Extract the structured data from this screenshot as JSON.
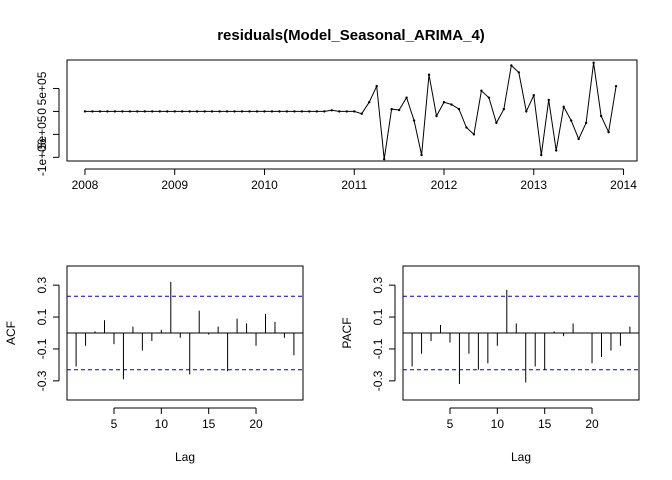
{
  "chart_data": [
    {
      "type": "line",
      "title": "residuals(Model_Seasonal_ARIMA_4)",
      "xlabel": "",
      "ylabel": "",
      "x_ticks": [
        "2008",
        "2009",
        "2010",
        "2011",
        "2012",
        "2013",
        "2014"
      ],
      "y_ticks": [
        "-1e+06",
        "-5e+05",
        "0",
        "5e+05"
      ],
      "xlim": [
        2008,
        2014
      ],
      "ylim": [
        -1000000,
        500000
      ],
      "series": [
        {
          "start": 2008.0,
          "frequency": 12,
          "values": [
            0,
            0,
            0,
            0,
            0,
            0,
            0,
            0,
            0,
            0,
            0,
            0,
            0,
            0,
            0,
            0,
            0,
            0,
            0,
            0,
            0,
            0,
            0,
            0,
            0,
            0,
            0,
            0,
            0,
            0,
            0,
            0,
            0,
            25000,
            0,
            0,
            0,
            -50000,
            200000,
            550000,
            -1040000,
            50000,
            30000,
            300000,
            -200000,
            -950000,
            800000,
            -100000,
            200000,
            150000,
            50000,
            -350000,
            -500000,
            450000,
            300000,
            -250000,
            50000,
            1000000,
            850000,
            0,
            350000,
            -950000,
            250000,
            -850000,
            100000,
            -200000,
            -600000,
            -250000,
            1060000,
            -100000,
            -450000,
            550000
          ]
        }
      ]
    },
    {
      "type": "bar",
      "ylabel": "ACF",
      "xlabel": "Lag",
      "x_ticks": [
        "5",
        "10",
        "15",
        "20"
      ],
      "y_ticks": [
        "-0.3",
        "-0.1",
        "0.1",
        "0.3"
      ],
      "ylim": [
        -0.4,
        0.4
      ],
      "xlim": [
        0,
        24
      ],
      "confidence_bound": 0.23,
      "lags": [
        1,
        2,
        3,
        4,
        5,
        6,
        7,
        8,
        9,
        10,
        11,
        12,
        13,
        14,
        15,
        16,
        17,
        18,
        19,
        20,
        21,
        22,
        23,
        24
      ],
      "values": [
        -0.21,
        -0.08,
        0.01,
        0.08,
        -0.07,
        -0.29,
        0.04,
        -0.11,
        -0.05,
        0.02,
        0.32,
        -0.03,
        -0.26,
        0.14,
        -0.01,
        0.04,
        -0.24,
        0.09,
        0.06,
        -0.08,
        0.12,
        0.07,
        -0.03,
        -0.14
      ]
    },
    {
      "type": "bar",
      "ylabel": "PACF",
      "xlabel": "Lag",
      "x_ticks": [
        "5",
        "10",
        "15",
        "20"
      ],
      "y_ticks": [
        "-0.3",
        "-0.1",
        "0.1",
        "0.3"
      ],
      "ylim": [
        -0.4,
        0.4
      ],
      "xlim": [
        0,
        24
      ],
      "confidence_bound": 0.23,
      "lags": [
        1,
        2,
        3,
        4,
        5,
        6,
        7,
        8,
        9,
        10,
        11,
        12,
        13,
        14,
        15,
        16,
        17,
        18,
        19,
        20,
        21,
        22,
        23,
        24
      ],
      "values": [
        -0.21,
        -0.13,
        -0.05,
        0.05,
        -0.06,
        -0.32,
        -0.13,
        -0.23,
        -0.19,
        -0.08,
        0.27,
        0.06,
        -0.31,
        -0.21,
        -0.23,
        0.01,
        -0.02,
        0.06,
        0.0,
        -0.19,
        -0.15,
        -0.11,
        -0.08,
        0.04
      ]
    }
  ]
}
